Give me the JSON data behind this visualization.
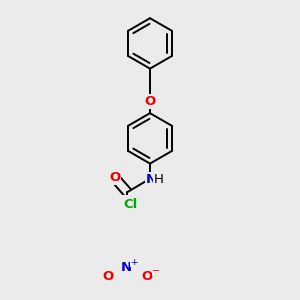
{
  "bg_color": "#ebebeb",
  "bond_color": "#000000",
  "bond_width": 1.4,
  "dbo": 0.055,
  "atom_colors": {
    "O": "#ee0000",
    "N": "#0000cc",
    "Cl": "#00aa00"
  },
  "font_size": 9.5
}
